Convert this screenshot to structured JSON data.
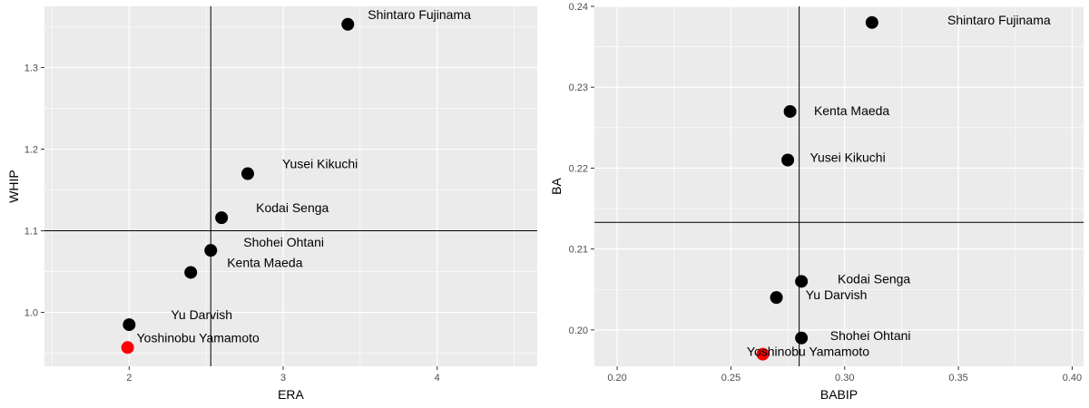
{
  "chart_data": [
    {
      "type": "scatter",
      "xlabel": "ERA",
      "ylabel": "WHIP",
      "xlim": [
        1.45,
        4.65
      ],
      "ylim": [
        0.934,
        1.375
      ],
      "x_ticks": [
        {
          "value": 2,
          "label": "2"
        },
        {
          "value": 3,
          "label": "3"
        },
        {
          "value": 4,
          "label": "4"
        }
      ],
      "y_ticks": [
        {
          "value": 1.0,
          "label": "1.0"
        },
        {
          "value": 1.1,
          "label": "1.1"
        },
        {
          "value": 1.2,
          "label": "1.2"
        },
        {
          "value": 1.3,
          "label": "1.3"
        }
      ],
      "vline": 2.53,
      "hline": 1.1,
      "points": [
        {
          "name": "Shintaro Fujinama",
          "x": 3.42,
          "y": 1.353,
          "highlight": false
        },
        {
          "name": "Yusei Kikuchi",
          "x": 2.77,
          "y": 1.17,
          "highlight": false
        },
        {
          "name": "Kodai Senga",
          "x": 2.6,
          "y": 1.116,
          "highlight": false
        },
        {
          "name": "Shohei Ohtani",
          "x": 2.53,
          "y": 1.076,
          "highlight": false
        },
        {
          "name": "Kenta Maeda",
          "x": 2.4,
          "y": 1.049,
          "highlight": false
        },
        {
          "name": "Yu Darvish",
          "x": 2.0,
          "y": 0.985,
          "highlight": false
        },
        {
          "name": "Yoshinobu Yamamoto",
          "x": 1.99,
          "y": 0.957,
          "highlight": true
        }
      ],
      "grid": true,
      "point_color": "#000000",
      "highlight_color": "#ff0000",
      "panel_bg": "#ebebeb"
    },
    {
      "type": "scatter",
      "xlabel": "BABIP",
      "ylabel": "BA",
      "xlim": [
        0.19,
        0.405
      ],
      "ylim": [
        0.1955,
        0.24
      ],
      "x_ticks": [
        {
          "value": 0.2,
          "label": "0.20"
        },
        {
          "value": 0.25,
          "label": "0.25"
        },
        {
          "value": 0.3,
          "label": "0.30"
        },
        {
          "value": 0.35,
          "label": "0.35"
        },
        {
          "value": 0.4,
          "label": "0.40"
        }
      ],
      "y_ticks": [
        {
          "value": 0.2,
          "label": "0.20"
        },
        {
          "value": 0.21,
          "label": "0.21"
        },
        {
          "value": 0.22,
          "label": "0.22"
        },
        {
          "value": 0.23,
          "label": "0.23"
        },
        {
          "value": 0.24,
          "label": "0.24"
        }
      ],
      "vline": 0.28,
      "hline": 0.2133,
      "points": [
        {
          "name": "Shintaro Fujinama",
          "x": 0.312,
          "y": 0.238,
          "highlight": false
        },
        {
          "name": "Kenta Maeda",
          "x": 0.276,
          "y": 0.227,
          "highlight": false
        },
        {
          "name": "Yusei Kikuchi",
          "x": 0.275,
          "y": 0.221,
          "highlight": false
        },
        {
          "name": "Kodai Senga",
          "x": 0.281,
          "y": 0.206,
          "highlight": false
        },
        {
          "name": "Yu Darvish",
          "x": 0.27,
          "y": 0.204,
          "highlight": false
        },
        {
          "name": "Shohei Ohtani",
          "x": 0.281,
          "y": 0.199,
          "highlight": false
        },
        {
          "name": "Yoshinobu Yamamoto",
          "x": 0.264,
          "y": 0.197,
          "highlight": true
        }
      ],
      "grid": true,
      "point_color": "#000000",
      "highlight_color": "#ff0000",
      "panel_bg": "#ebebeb"
    }
  ]
}
